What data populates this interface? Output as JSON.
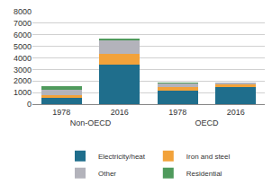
{
  "chart_data": {
    "type": "bar",
    "stacked": true,
    "groups": [
      "Non-OECD",
      "Non-OECD",
      "OECD",
      "OECD"
    ],
    "categories": [
      "1978",
      "2016",
      "1978",
      "2016"
    ],
    "series": [
      {
        "name": "Electricity/heat",
        "color": "#1f6e8c",
        "values": [
          550,
          3400,
          1150,
          1500
        ]
      },
      {
        "name": "Iron and steel",
        "color": "#f2a23a",
        "values": [
          250,
          950,
          300,
          200
        ]
      },
      {
        "name": "Other",
        "color": "#b3b3bb",
        "values": [
          450,
          1150,
          300,
          150
        ]
      },
      {
        "name": "Residential",
        "color": "#4f9a5c",
        "values": [
          300,
          150,
          100,
          50
        ]
      }
    ],
    "ylim": [
      0,
      8000
    ],
    "yticks": [
      0,
      1000,
      2000,
      3000,
      4000,
      5000,
      6000,
      7000,
      8000
    ],
    "grid": true,
    "legend": "bottom"
  }
}
